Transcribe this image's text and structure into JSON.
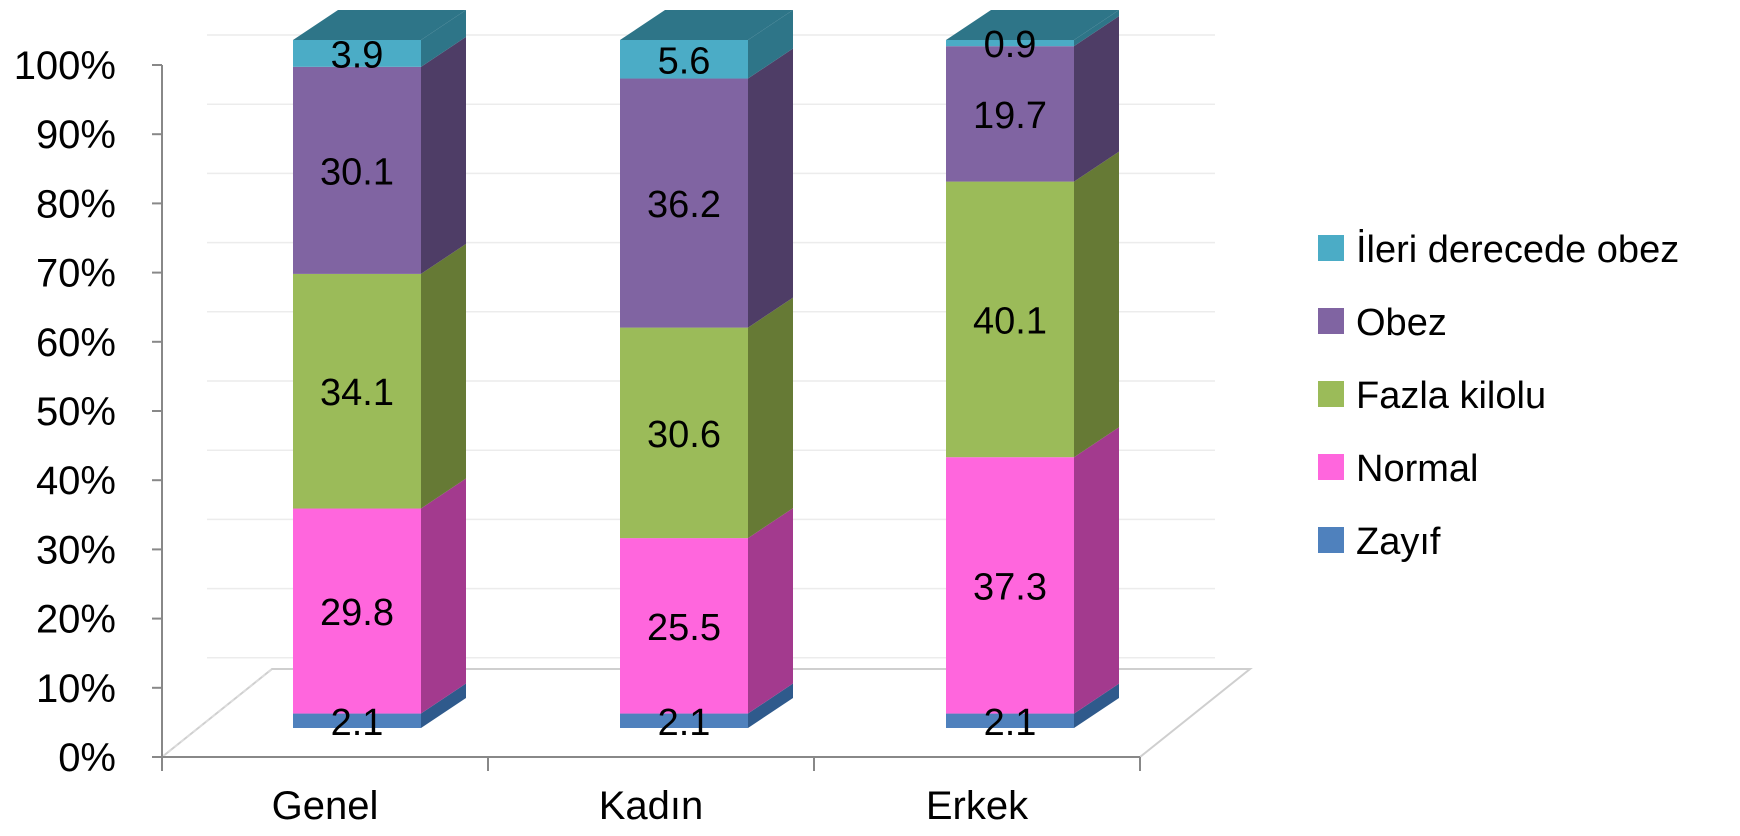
{
  "chart_data": {
    "type": "bar",
    "stacked": true,
    "three_d": true,
    "normalized_percent": true,
    "categories": [
      "Genel",
      "Kadın",
      "Erkek"
    ],
    "ylim": [
      0,
      100
    ],
    "yticks": [
      "0%",
      "10%",
      "20%",
      "30%",
      "40%",
      "50%",
      "60%",
      "70%",
      "80%",
      "90%",
      "100%"
    ],
    "grid": true,
    "legend_position": "right",
    "series": [
      {
        "name": "Zayıf",
        "values": [
          2.1,
          2.1,
          2.1
        ],
        "color": "#4F81BD",
        "side_color": "#2F5A8C"
      },
      {
        "name": "Normal",
        "values": [
          29.8,
          25.5,
          37.3
        ],
        "color": "#FF66DD",
        "side_color": "#A33A8E"
      },
      {
        "name": "Fazla kilolu",
        "values": [
          34.1,
          30.6,
          40.1
        ],
        "color": "#9BBB59",
        "side_color": "#667A35"
      },
      {
        "name": "Obez",
        "values": [
          30.1,
          36.2,
          19.7
        ],
        "color": "#8064A2",
        "side_color": "#4E3D66"
      },
      {
        "name": "İleri derecede obez",
        "values": [
          3.9,
          5.6,
          0.9
        ],
        "color": "#4BACC6",
        "side_color": "#2E7588"
      }
    ]
  }
}
